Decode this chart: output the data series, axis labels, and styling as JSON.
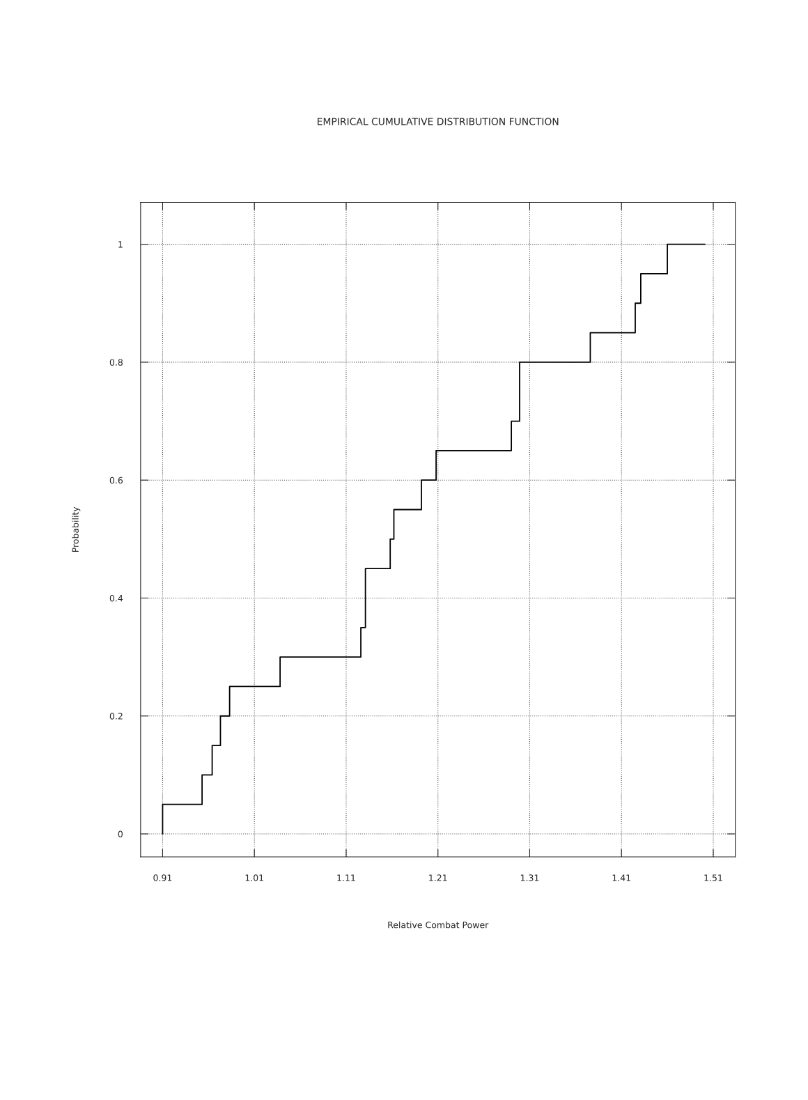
{
  "chart_data": {
    "type": "step",
    "title": "EMPIRICAL CUMULATIVE DISTRIBUTION FUNCTION",
    "xlabel": "Relative Combat Power",
    "ylabel": "Probability",
    "x": [
      0.91,
      0.91,
      0.953,
      0.964,
      0.973,
      0.983,
      1.038,
      1.126,
      1.131,
      1.158,
      1.162,
      1.192,
      1.208,
      1.29,
      1.299,
      1.376,
      1.425,
      1.431,
      1.46,
      1.501
    ],
    "series": [
      {
        "color": "#000000",
        "values": [
          0,
          0.05,
          0.1,
          0.15,
          0.2,
          0.25,
          0.3,
          0.35,
          0.45,
          0.5,
          0.55,
          0.6,
          0.65,
          0.7,
          0.8,
          0.85,
          0.9,
          0.95,
          1,
          1
        ]
      }
    ],
    "xlim": [
      0.886,
      1.534
    ],
    "ylim": [
      -0.039,
      1.071
    ],
    "xticks": [
      0.91,
      1.01,
      1.11,
      1.21,
      1.31,
      1.41,
      1.51
    ],
    "yticks": [
      0,
      0.2,
      0.4,
      0.6,
      0.8,
      1
    ],
    "grid": true,
    "line_style": "solid",
    "marker": "none"
  }
}
